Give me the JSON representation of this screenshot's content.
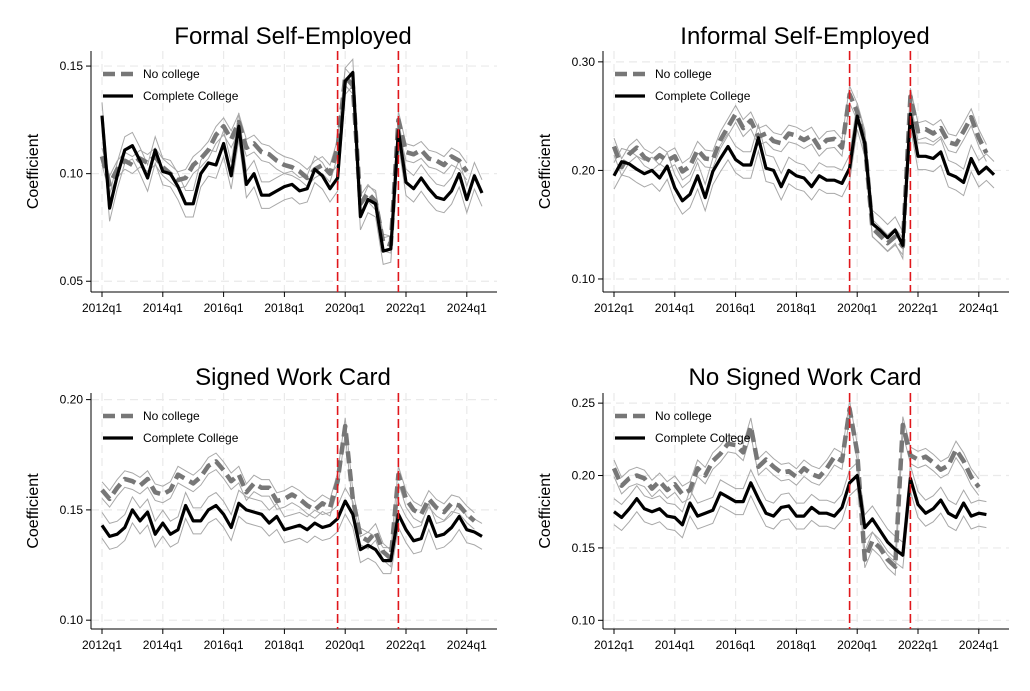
{
  "chart_data": [
    {
      "type": "line",
      "title": "Formal Self-Employed",
      "ylabel": "Coefficient",
      "xlabel": "",
      "x_ticks": [
        "2012q1",
        "2014q1",
        "2016q1",
        "2018q1",
        "2020q1",
        "2022q1",
        "2024q1"
      ],
      "y_ticks": [
        "0.05",
        "0.10",
        "0.15"
      ],
      "ylim": [
        0.045,
        0.157
      ],
      "grid": true,
      "legend_position": "top-left",
      "vlines": [
        "2019q4",
        "2021q4"
      ],
      "series": [
        {
          "name": "No college",
          "style": "dashed",
          "color": "#777777",
          "values": [
            0.108,
            0.095,
            0.102,
            0.106,
            0.104,
            0.107,
            0.105,
            0.108,
            0.103,
            0.1,
            0.097,
            0.098,
            0.104,
            0.107,
            0.111,
            0.118,
            0.122,
            0.116,
            0.124,
            0.112,
            0.114,
            0.11,
            0.109,
            0.106,
            0.104,
            0.103,
            0.101,
            0.098,
            0.102,
            0.104,
            0.1,
            0.112,
            0.145,
            0.141,
            0.086,
            0.091,
            0.087,
            0.068,
            0.067,
            0.125,
            0.11,
            0.109,
            0.111,
            0.107,
            0.106,
            0.104,
            0.108,
            0.106,
            0.101
          ]
        },
        {
          "name": "Complete College",
          "style": "solid",
          "color": "#000000",
          "values": [
            0.127,
            0.084,
            0.099,
            0.111,
            0.113,
            0.106,
            0.098,
            0.111,
            0.101,
            0.1,
            0.094,
            0.086,
            0.086,
            0.1,
            0.105,
            0.104,
            0.114,
            0.099,
            0.122,
            0.095,
            0.1,
            0.09,
            0.09,
            0.092,
            0.094,
            0.095,
            0.092,
            0.093,
            0.102,
            0.099,
            0.093,
            0.098,
            0.143,
            0.147,
            0.08,
            0.088,
            0.086,
            0.064,
            0.065,
            0.12,
            0.096,
            0.093,
            0.098,
            0.093,
            0.089,
            0.088,
            0.092,
            0.1,
            0.088,
            0.099,
            0.091
          ]
        }
      ]
    },
    {
      "type": "line",
      "title": "Informal Self-Employed",
      "ylabel": "Coefficient",
      "xlabel": "",
      "x_ticks": [
        "2012q1",
        "2014q1",
        "2016q1",
        "2018q1",
        "2020q1",
        "2022q1",
        "2024q1"
      ],
      "y_ticks": [
        "0.10",
        "0.20",
        "0.30"
      ],
      "ylim": [
        0.088,
        0.31
      ],
      "grid": true,
      "legend_position": "top-left",
      "vlines": [
        "2019q4",
        "2021q4"
      ],
      "series": [
        {
          "name": "No college",
          "style": "dashed",
          "color": "#777777",
          "values": [
            0.222,
            0.203,
            0.215,
            0.221,
            0.212,
            0.208,
            0.214,
            0.209,
            0.213,
            0.199,
            0.204,
            0.219,
            0.211,
            0.21,
            0.228,
            0.24,
            0.252,
            0.239,
            0.246,
            0.231,
            0.234,
            0.227,
            0.225,
            0.234,
            0.232,
            0.228,
            0.232,
            0.221,
            0.228,
            0.229,
            0.221,
            0.27,
            0.254,
            0.225,
            0.147,
            0.14,
            0.133,
            0.139,
            0.13,
            0.268,
            0.236,
            0.238,
            0.234,
            0.239,
            0.226,
            0.224,
            0.236,
            0.249,
            0.23,
            0.216
          ]
        },
        {
          "name": "Complete College",
          "style": "solid",
          "color": "#000000",
          "values": [
            0.195,
            0.208,
            0.206,
            0.201,
            0.197,
            0.2,
            0.193,
            0.204,
            0.184,
            0.172,
            0.178,
            0.195,
            0.175,
            0.199,
            0.211,
            0.222,
            0.21,
            0.205,
            0.205,
            0.23,
            0.202,
            0.2,
            0.185,
            0.2,
            0.195,
            0.193,
            0.185,
            0.195,
            0.191,
            0.191,
            0.188,
            0.202,
            0.25,
            0.225,
            0.151,
            0.145,
            0.138,
            0.145,
            0.131,
            0.252,
            0.213,
            0.213,
            0.211,
            0.217,
            0.197,
            0.194,
            0.189,
            0.211,
            0.197,
            0.203,
            0.196
          ]
        }
      ]
    },
    {
      "type": "line",
      "title": "Signed Work Card",
      "ylabel": "Coefficient",
      "xlabel": "",
      "x_ticks": [
        "2012q1",
        "2014q1",
        "2016q1",
        "2018q1",
        "2020q1",
        "2022q1",
        "2024q1"
      ],
      "y_ticks": [
        "0.10",
        "0.15",
        "0.20"
      ],
      "ylim": [
        0.096,
        0.203
      ],
      "grid": true,
      "legend_position": "top-left",
      "vlines": [
        "2019q4",
        "2021q4"
      ],
      "series": [
        {
          "name": "No college",
          "style": "dashed",
          "color": "#777777",
          "values": [
            0.159,
            0.155,
            0.16,
            0.164,
            0.163,
            0.161,
            0.164,
            0.158,
            0.157,
            0.159,
            0.166,
            0.164,
            0.162,
            0.165,
            0.17,
            0.172,
            0.168,
            0.163,
            0.166,
            0.158,
            0.162,
            0.16,
            0.16,
            0.154,
            0.155,
            0.157,
            0.155,
            0.152,
            0.15,
            0.153,
            0.151,
            0.163,
            0.188,
            0.155,
            0.138,
            0.136,
            0.14,
            0.131,
            0.128,
            0.166,
            0.155,
            0.15,
            0.148,
            0.155,
            0.151,
            0.149,
            0.153,
            0.152,
            0.148,
            0.145
          ]
        },
        {
          "name": "Complete College",
          "style": "solid",
          "color": "#000000",
          "values": [
            0.143,
            0.138,
            0.139,
            0.142,
            0.15,
            0.145,
            0.149,
            0.139,
            0.144,
            0.139,
            0.141,
            0.152,
            0.145,
            0.145,
            0.15,
            0.152,
            0.148,
            0.142,
            0.153,
            0.15,
            0.149,
            0.148,
            0.144,
            0.147,
            0.141,
            0.142,
            0.143,
            0.141,
            0.144,
            0.142,
            0.143,
            0.146,
            0.154,
            0.148,
            0.132,
            0.134,
            0.132,
            0.127,
            0.127,
            0.148,
            0.141,
            0.136,
            0.137,
            0.147,
            0.138,
            0.139,
            0.142,
            0.147,
            0.141,
            0.14,
            0.138
          ]
        }
      ]
    },
    {
      "type": "line",
      "title": "No Signed Work Card",
      "ylabel": "Coefficient",
      "xlabel": "",
      "x_ticks": [
        "2012q1",
        "2014q1",
        "2016q1",
        "2018q1",
        "2020q1",
        "2022q1",
        "2024q1"
      ],
      "y_ticks": [
        "0.10",
        "0.15",
        "0.20",
        "0.25"
      ],
      "ylim": [
        0.094,
        0.257
      ],
      "grid": true,
      "legend_position": "top-left",
      "vlines": [
        "2019q4",
        "2021q4"
      ],
      "series": [
        {
          "name": "No college",
          "style": "dashed",
          "color": "#777777",
          "values": [
            0.205,
            0.193,
            0.198,
            0.2,
            0.198,
            0.191,
            0.196,
            0.19,
            0.194,
            0.187,
            0.19,
            0.205,
            0.2,
            0.21,
            0.215,
            0.222,
            0.221,
            0.216,
            0.234,
            0.206,
            0.211,
            0.206,
            0.202,
            0.203,
            0.199,
            0.205,
            0.201,
            0.199,
            0.205,
            0.213,
            0.21,
            0.246,
            0.216,
            0.142,
            0.155,
            0.15,
            0.142,
            0.137,
            0.235,
            0.214,
            0.211,
            0.213,
            0.209,
            0.204,
            0.207,
            0.218,
            0.21,
            0.199,
            0.192
          ]
        },
        {
          "name": "Complete College",
          "style": "solid",
          "color": "#000000",
          "values": [
            0.175,
            0.171,
            0.177,
            0.184,
            0.177,
            0.175,
            0.177,
            0.172,
            0.171,
            0.166,
            0.181,
            0.172,
            0.174,
            0.176,
            0.188,
            0.185,
            0.182,
            0.182,
            0.195,
            0.184,
            0.174,
            0.172,
            0.178,
            0.179,
            0.172,
            0.172,
            0.178,
            0.174,
            0.174,
            0.172,
            0.178,
            0.195,
            0.2,
            0.164,
            0.17,
            0.162,
            0.154,
            0.149,
            0.145,
            0.198,
            0.18,
            0.174,
            0.177,
            0.183,
            0.174,
            0.171,
            0.181,
            0.172,
            0.174,
            0.173
          ]
        }
      ]
    }
  ]
}
